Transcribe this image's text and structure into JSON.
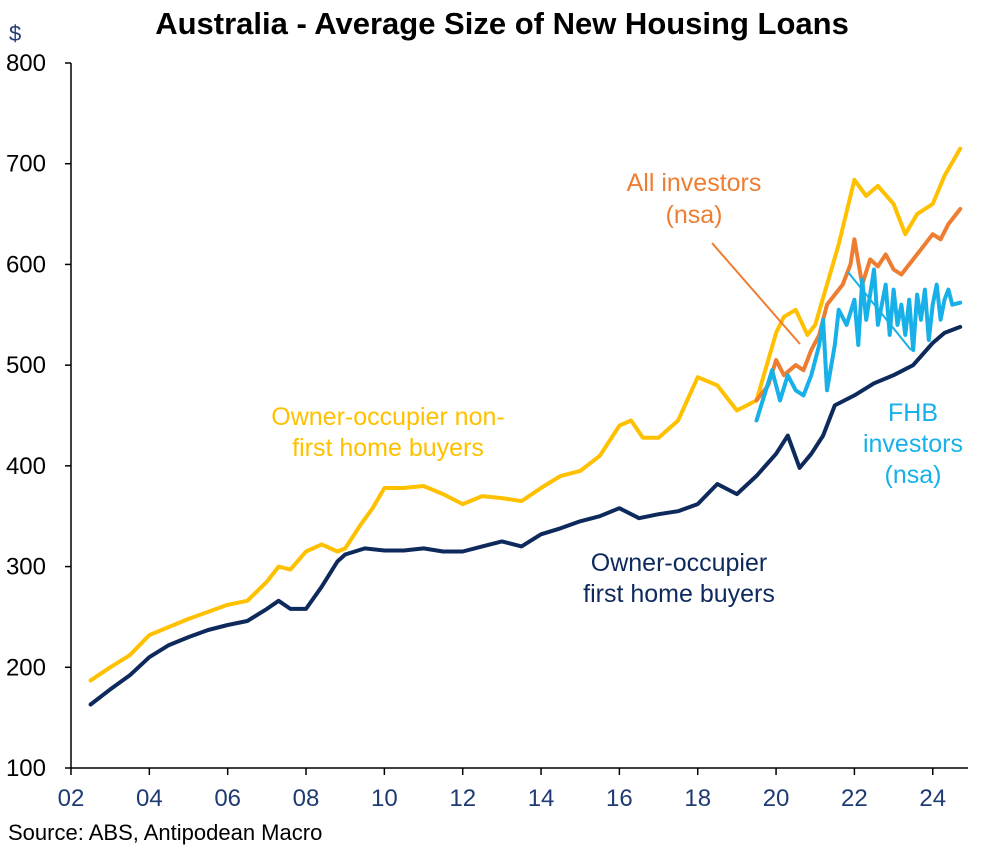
{
  "chart_data": {
    "type": "line",
    "title": "Australia - Average Size of New Housing Loans",
    "ylabel": "$",
    "xlabel": "",
    "ylim": [
      100,
      800
    ],
    "yticks": [
      100,
      200,
      300,
      400,
      500,
      600,
      700,
      800
    ],
    "xlim": [
      2002,
      2024.9
    ],
    "xticks": [
      2002,
      2004,
      2006,
      2008,
      2010,
      2012,
      2014,
      2016,
      2018,
      2020,
      2022,
      2024
    ],
    "xtick_labels": [
      "02",
      "04",
      "06",
      "08",
      "10",
      "12",
      "14",
      "16",
      "18",
      "20",
      "22",
      "24"
    ],
    "grid": false,
    "legend": "none",
    "source": "Source: ABS, Antipodean Macro",
    "series": [
      {
        "name": "Owner-occupier non-first home buyers",
        "color": "#FFC000",
        "x": [
          2002.5,
          2003.0,
          2003.5,
          2004.0,
          2004.5,
          2005.0,
          2005.5,
          2006.0,
          2006.5,
          2007.0,
          2007.3,
          2007.6,
          2008.0,
          2008.4,
          2008.8,
          2009.0,
          2009.4,
          2009.7,
          2010.0,
          2010.5,
          2011.0,
          2011.5,
          2012.0,
          2012.5,
          2013.0,
          2013.5,
          2014.0,
          2014.5,
          2015.0,
          2015.5,
          2016.0,
          2016.3,
          2016.6,
          2017.0,
          2017.5,
          2018.0,
          2018.5,
          2019.0,
          2019.5,
          2020.0,
          2020.2,
          2020.5,
          2020.8,
          2021.0,
          2021.3,
          2021.6,
          2022.0,
          2022.3,
          2022.6,
          2023.0,
          2023.3,
          2023.6,
          2024.0,
          2024.3,
          2024.7
        ],
        "values": [
          187,
          200,
          212,
          232,
          240,
          248,
          255,
          262,
          266,
          285,
          300,
          297,
          315,
          322,
          315,
          318,
          342,
          358,
          378,
          378,
          380,
          372,
          362,
          370,
          368,
          365,
          378,
          390,
          395,
          410,
          440,
          445,
          428,
          428,
          445,
          488,
          480,
          455,
          465,
          532,
          548,
          555,
          530,
          540,
          580,
          620,
          684,
          668,
          678,
          660,
          630,
          650,
          660,
          688,
          715
        ]
      },
      {
        "name": "Owner-occupier first home buyers",
        "color": "#0E2A5C",
        "x": [
          2002.5,
          2003.0,
          2003.5,
          2004.0,
          2004.5,
          2005.0,
          2005.5,
          2006.0,
          2006.5,
          2007.0,
          2007.3,
          2007.6,
          2008.0,
          2008.4,
          2008.8,
          2009.0,
          2009.5,
          2010.0,
          2010.5,
          2011.0,
          2011.5,
          2012.0,
          2012.5,
          2013.0,
          2013.5,
          2014.0,
          2014.5,
          2015.0,
          2015.5,
          2016.0,
          2016.5,
          2017.0,
          2017.5,
          2018.0,
          2018.5,
          2019.0,
          2019.5,
          2020.0,
          2020.3,
          2020.6,
          2020.9,
          2021.2,
          2021.5,
          2022.0,
          2022.5,
          2023.0,
          2023.5,
          2024.0,
          2024.3,
          2024.7
        ],
        "values": [
          163,
          178,
          192,
          210,
          222,
          230,
          237,
          242,
          246,
          258,
          266,
          258,
          258,
          280,
          305,
          312,
          318,
          316,
          316,
          318,
          315,
          315,
          320,
          325,
          320,
          332,
          338,
          345,
          350,
          358,
          348,
          352,
          355,
          362,
          382,
          372,
          390,
          412,
          430,
          398,
          412,
          430,
          460,
          470,
          482,
          490,
          500,
          522,
          532,
          538
        ]
      },
      {
        "name": "All investors (nsa)",
        "color": "#ED7D31",
        "x": [
          2019.5,
          2019.8,
          2020.0,
          2020.2,
          2020.5,
          2020.7,
          2020.9,
          2021.1,
          2021.3,
          2021.5,
          2021.7,
          2021.9,
          2022.0,
          2022.2,
          2022.4,
          2022.6,
          2022.8,
          2023.0,
          2023.2,
          2023.4,
          2023.6,
          2023.8,
          2024.0,
          2024.2,
          2024.4,
          2024.7
        ],
        "values": [
          465,
          480,
          505,
          490,
          500,
          495,
          515,
          530,
          560,
          570,
          580,
          600,
          625,
          580,
          605,
          598,
          610,
          595,
          590,
          600,
          610,
          620,
          630,
          625,
          640,
          655
        ]
      },
      {
        "name": "FHB investors (nsa)",
        "color": "#17B0E8",
        "x": [
          2019.5,
          2019.7,
          2019.9,
          2020.1,
          2020.3,
          2020.5,
          2020.7,
          2020.9,
          2021.1,
          2021.2,
          2021.3,
          2021.5,
          2021.6,
          2021.8,
          2022.0,
          2022.1,
          2022.2,
          2022.3,
          2022.5,
          2022.6,
          2022.8,
          2022.9,
          2023.0,
          2023.1,
          2023.2,
          2023.3,
          2023.4,
          2023.5,
          2023.6,
          2023.7,
          2023.8,
          2023.9,
          2024.0,
          2024.1,
          2024.2,
          2024.3,
          2024.4,
          2024.5,
          2024.7
        ],
        "values": [
          445,
          470,
          495,
          465,
          490,
          475,
          470,
          490,
          520,
          545,
          475,
          520,
          555,
          540,
          565,
          520,
          585,
          545,
          595,
          540,
          580,
          530,
          575,
          540,
          560,
          530,
          565,
          515,
          570,
          545,
          575,
          525,
          560,
          580,
          545,
          565,
          575,
          560,
          562
        ]
      }
    ],
    "annotations": [
      {
        "id": "nonfhb",
        "lines": [
          "Owner-occupier non-",
          "first home buyers"
        ],
        "color": "#FFC000"
      },
      {
        "id": "fhb",
        "lines": [
          "Owner-occupier",
          "first home buyers"
        ],
        "color": "#0E2A5C"
      },
      {
        "id": "inv",
        "lines": [
          "All investors",
          "(nsa)"
        ],
        "color": "#ED7D31"
      },
      {
        "id": "fhbinv",
        "lines": [
          "FHB",
          "investors",
          "(nsa)"
        ],
        "color": "#17B0E8"
      }
    ]
  }
}
